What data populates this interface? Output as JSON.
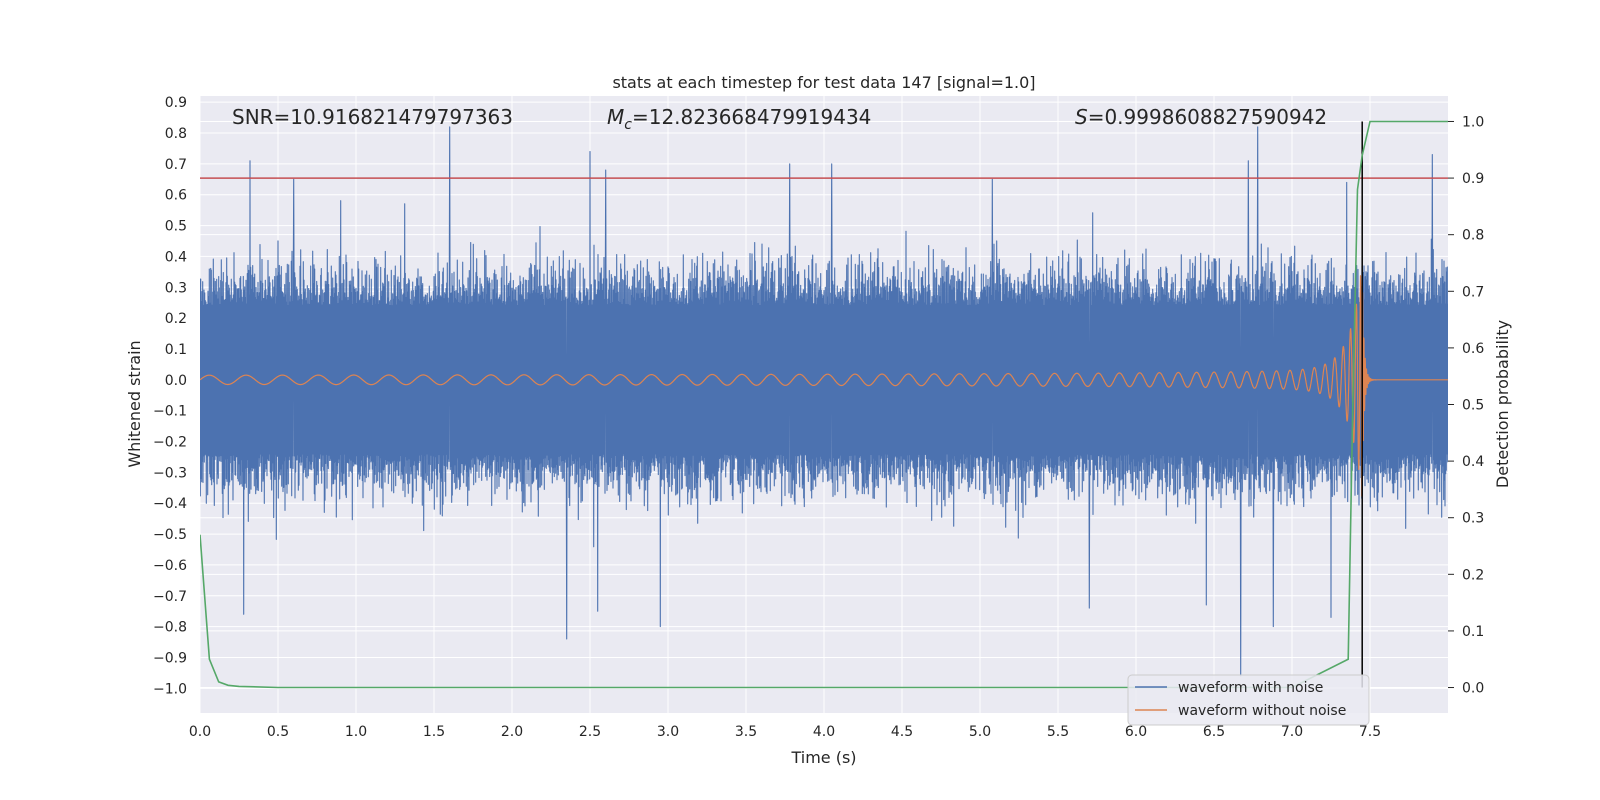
{
  "chart_data": {
    "type": "line",
    "title": "stats at each timestep for test data 147 [signal=1.0]",
    "xlabel": "Time (s)",
    "ylabel": "Whitened strain",
    "y2label": "Detection probability",
    "xlim": [
      0.0,
      8.0
    ],
    "ylim": [
      -1.08,
      0.92
    ],
    "y2lim": [
      -0.045,
      1.045
    ],
    "xticks": [
      "0.0",
      "0.5",
      "1.0",
      "1.5",
      "2.0",
      "2.5",
      "3.0",
      "3.5",
      "4.0",
      "4.5",
      "5.0",
      "5.5",
      "6.0",
      "6.5",
      "7.0",
      "7.5"
    ],
    "yticks": [
      "0.9",
      "0.8",
      "0.7",
      "0.6",
      "0.5",
      "0.4",
      "0.3",
      "0.2",
      "0.1",
      "0.0",
      "−0.1",
      "−0.2",
      "−0.3",
      "−0.4",
      "−0.5",
      "−0.6",
      "−0.7",
      "−0.8",
      "−0.9",
      "−1.0"
    ],
    "y2ticks": [
      "0.0",
      "0.1",
      "0.2",
      "0.3",
      "0.4",
      "0.5",
      "0.6",
      "0.7",
      "0.8",
      "0.9",
      "1.0"
    ],
    "annotations": {
      "snr": "SNR=10.916821479797363",
      "mc_symbol": "M",
      "mc_sub": "c",
      "mc_value": "=12.823668479919434",
      "s_symbol": "S",
      "s_value": "=0.9998608827590942"
    },
    "threshold": {
      "value": 0.9,
      "axis": "detection probability",
      "color": "#c44e52"
    },
    "merger_time": 7.45,
    "series": [
      {
        "name": "waveform with noise",
        "color": "#4c72b0",
        "description": "whitened noisy strain, roughly within -0.5..0.5 with spikes",
        "spikes": [
          [
            0.32,
            0.71
          ],
          [
            0.6,
            0.65
          ],
          [
            1.6,
            0.82
          ],
          [
            2.5,
            0.74
          ],
          [
            2.6,
            0.68
          ],
          [
            3.78,
            0.7
          ],
          [
            4.05,
            0.7
          ],
          [
            5.08,
            0.65
          ],
          [
            6.78,
            0.82
          ],
          [
            6.72,
            0.71
          ],
          [
            7.9,
            0.73
          ],
          [
            7.35,
            0.64
          ],
          [
            0.28,
            -0.76
          ],
          [
            2.35,
            -0.84
          ],
          [
            2.55,
            -0.75
          ],
          [
            2.95,
            -0.8
          ],
          [
            5.7,
            -0.74
          ],
          [
            6.67,
            -0.96
          ],
          [
            6.88,
            -0.8
          ],
          [
            6.45,
            -0.73
          ],
          [
            7.25,
            -0.77
          ]
        ]
      },
      {
        "name": "waveform without noise",
        "color": "#dd8452",
        "description": "chirp signal, amplitude ~0.015 growing to ~0.4 at merger near 7.45 s, then ringdown to zero"
      },
      {
        "name": "detection probability",
        "color": "#55a868",
        "axis": "right",
        "x": [
          0.0,
          0.06,
          0.12,
          0.18,
          0.25,
          0.5,
          1.0,
          7.0,
          7.36,
          7.39,
          7.42,
          7.45,
          7.5,
          8.0
        ],
        "values": [
          0.27,
          0.05,
          0.01,
          0.004,
          0.002,
          0.0,
          0.0,
          0.0,
          0.05,
          0.5,
          0.88,
          0.94,
          1.0,
          1.0
        ]
      }
    ],
    "legend": {
      "location": "lower-right",
      "entries": [
        "waveform with noise",
        "waveform without noise"
      ]
    },
    "grid": true
  }
}
